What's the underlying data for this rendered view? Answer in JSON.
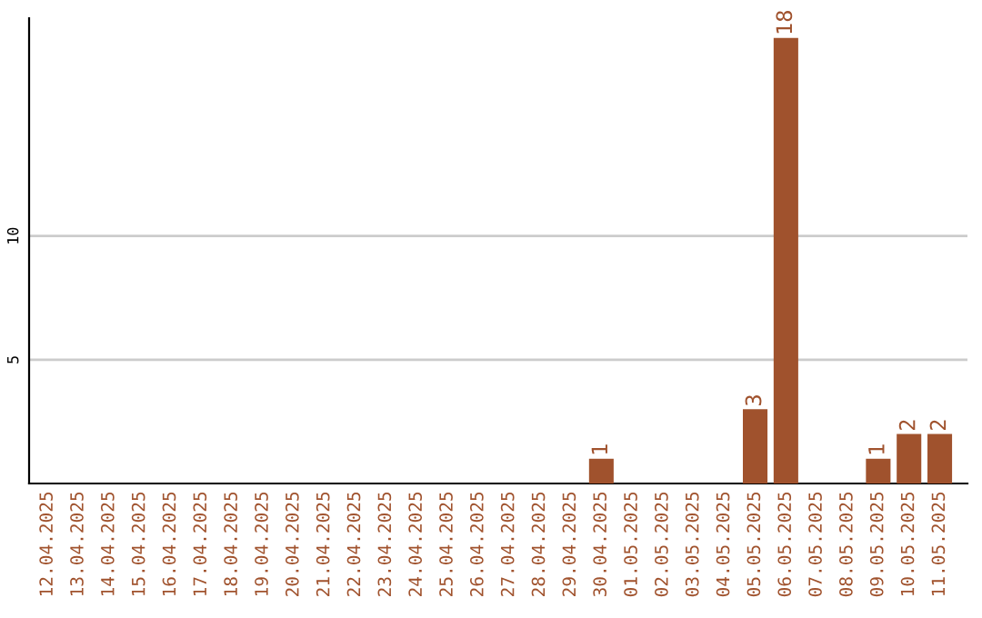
{
  "chart_data": {
    "type": "bar",
    "categories": [
      "12.04.2025",
      "13.04.2025",
      "14.04.2025",
      "15.04.2025",
      "16.04.2025",
      "17.04.2025",
      "18.04.2025",
      "19.04.2025",
      "20.04.2025",
      "21.04.2025",
      "22.04.2025",
      "23.04.2025",
      "24.04.2025",
      "25.04.2025",
      "26.04.2025",
      "27.04.2025",
      "28.04.2025",
      "29.04.2025",
      "30.04.2025",
      "01.05.2025",
      "02.05.2025",
      "03.05.2025",
      "04.05.2025",
      "05.05.2025",
      "06.05.2025",
      "07.05.2025",
      "08.05.2025",
      "09.05.2025",
      "10.05.2025",
      "11.05.2025"
    ],
    "values": [
      0,
      0,
      0,
      0,
      0,
      0,
      0,
      0,
      0,
      0,
      0,
      0,
      0,
      0,
      0,
      0,
      0,
      0,
      1,
      0,
      0,
      0,
      0,
      3,
      18,
      0,
      0,
      1,
      2,
      2
    ],
    "value_labels": [
      null,
      null,
      null,
      null,
      null,
      null,
      null,
      null,
      null,
      null,
      null,
      null,
      null,
      null,
      null,
      null,
      null,
      null,
      "1",
      null,
      null,
      null,
      null,
      "3",
      "18",
      null,
      null,
      "1",
      "2",
      "2"
    ],
    "color": "#a0522d",
    "ylim": [
      0,
      18.8
    ],
    "yticks": [
      5,
      10
    ],
    "grid": "y"
  }
}
